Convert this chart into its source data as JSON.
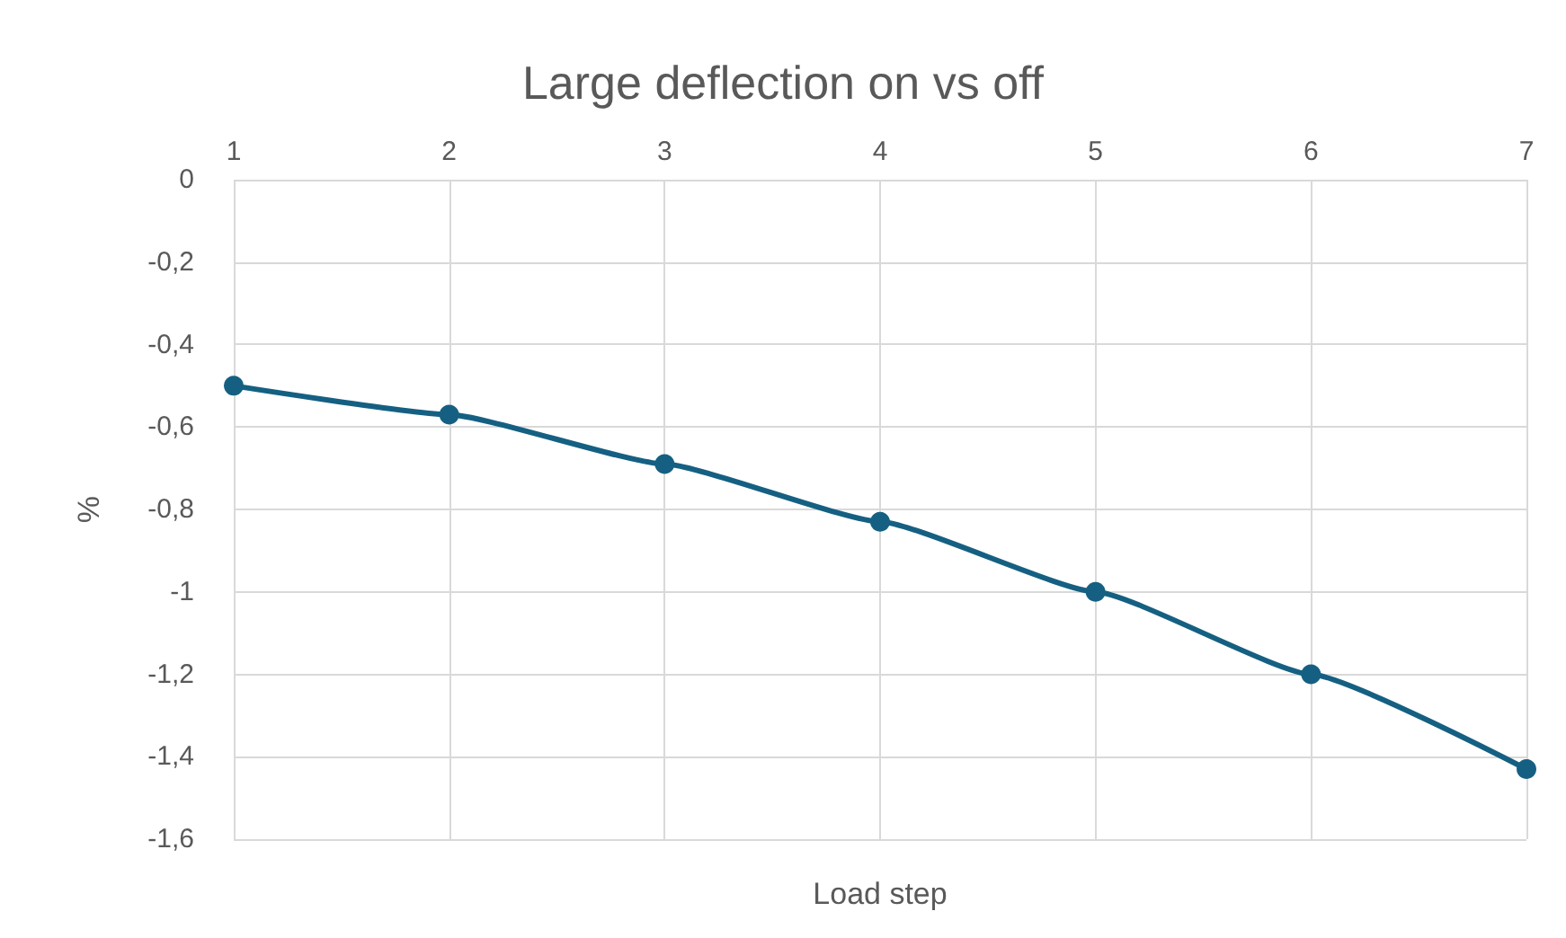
{
  "chart_data": {
    "type": "line",
    "title": "Large deflection on vs off",
    "xlabel": "Load step",
    "ylabel": "%",
    "x": [
      1,
      2,
      3,
      4,
      5,
      6,
      7
    ],
    "series": [
      {
        "color": "#156082",
        "values": [
          -0.5,
          -0.57,
          -0.69,
          -0.83,
          -1.0,
          -1.2,
          -1.43
        ]
      }
    ],
    "xlim": [
      1,
      7
    ],
    "xticks": [
      1,
      2,
      3,
      4,
      5,
      6,
      7
    ],
    "ylim": [
      -1.6,
      0
    ],
    "yticks": [
      {
        "value": -1.6,
        "label": "-1,6"
      },
      {
        "value": -1.4,
        "label": "-1,4"
      },
      {
        "value": -1.2,
        "label": "-1,2"
      },
      {
        "value": -1,
        "label": "-1"
      },
      {
        "value": -0.8,
        "label": "-0,8"
      },
      {
        "value": -0.6,
        "label": "-0,6"
      },
      {
        "value": -0.4,
        "label": "-0,4"
      },
      {
        "value": -0.2,
        "label": "-0,2"
      },
      {
        "value": 0,
        "label": "0"
      }
    ],
    "grid": true,
    "marker": "circle",
    "line_style": "solid"
  }
}
